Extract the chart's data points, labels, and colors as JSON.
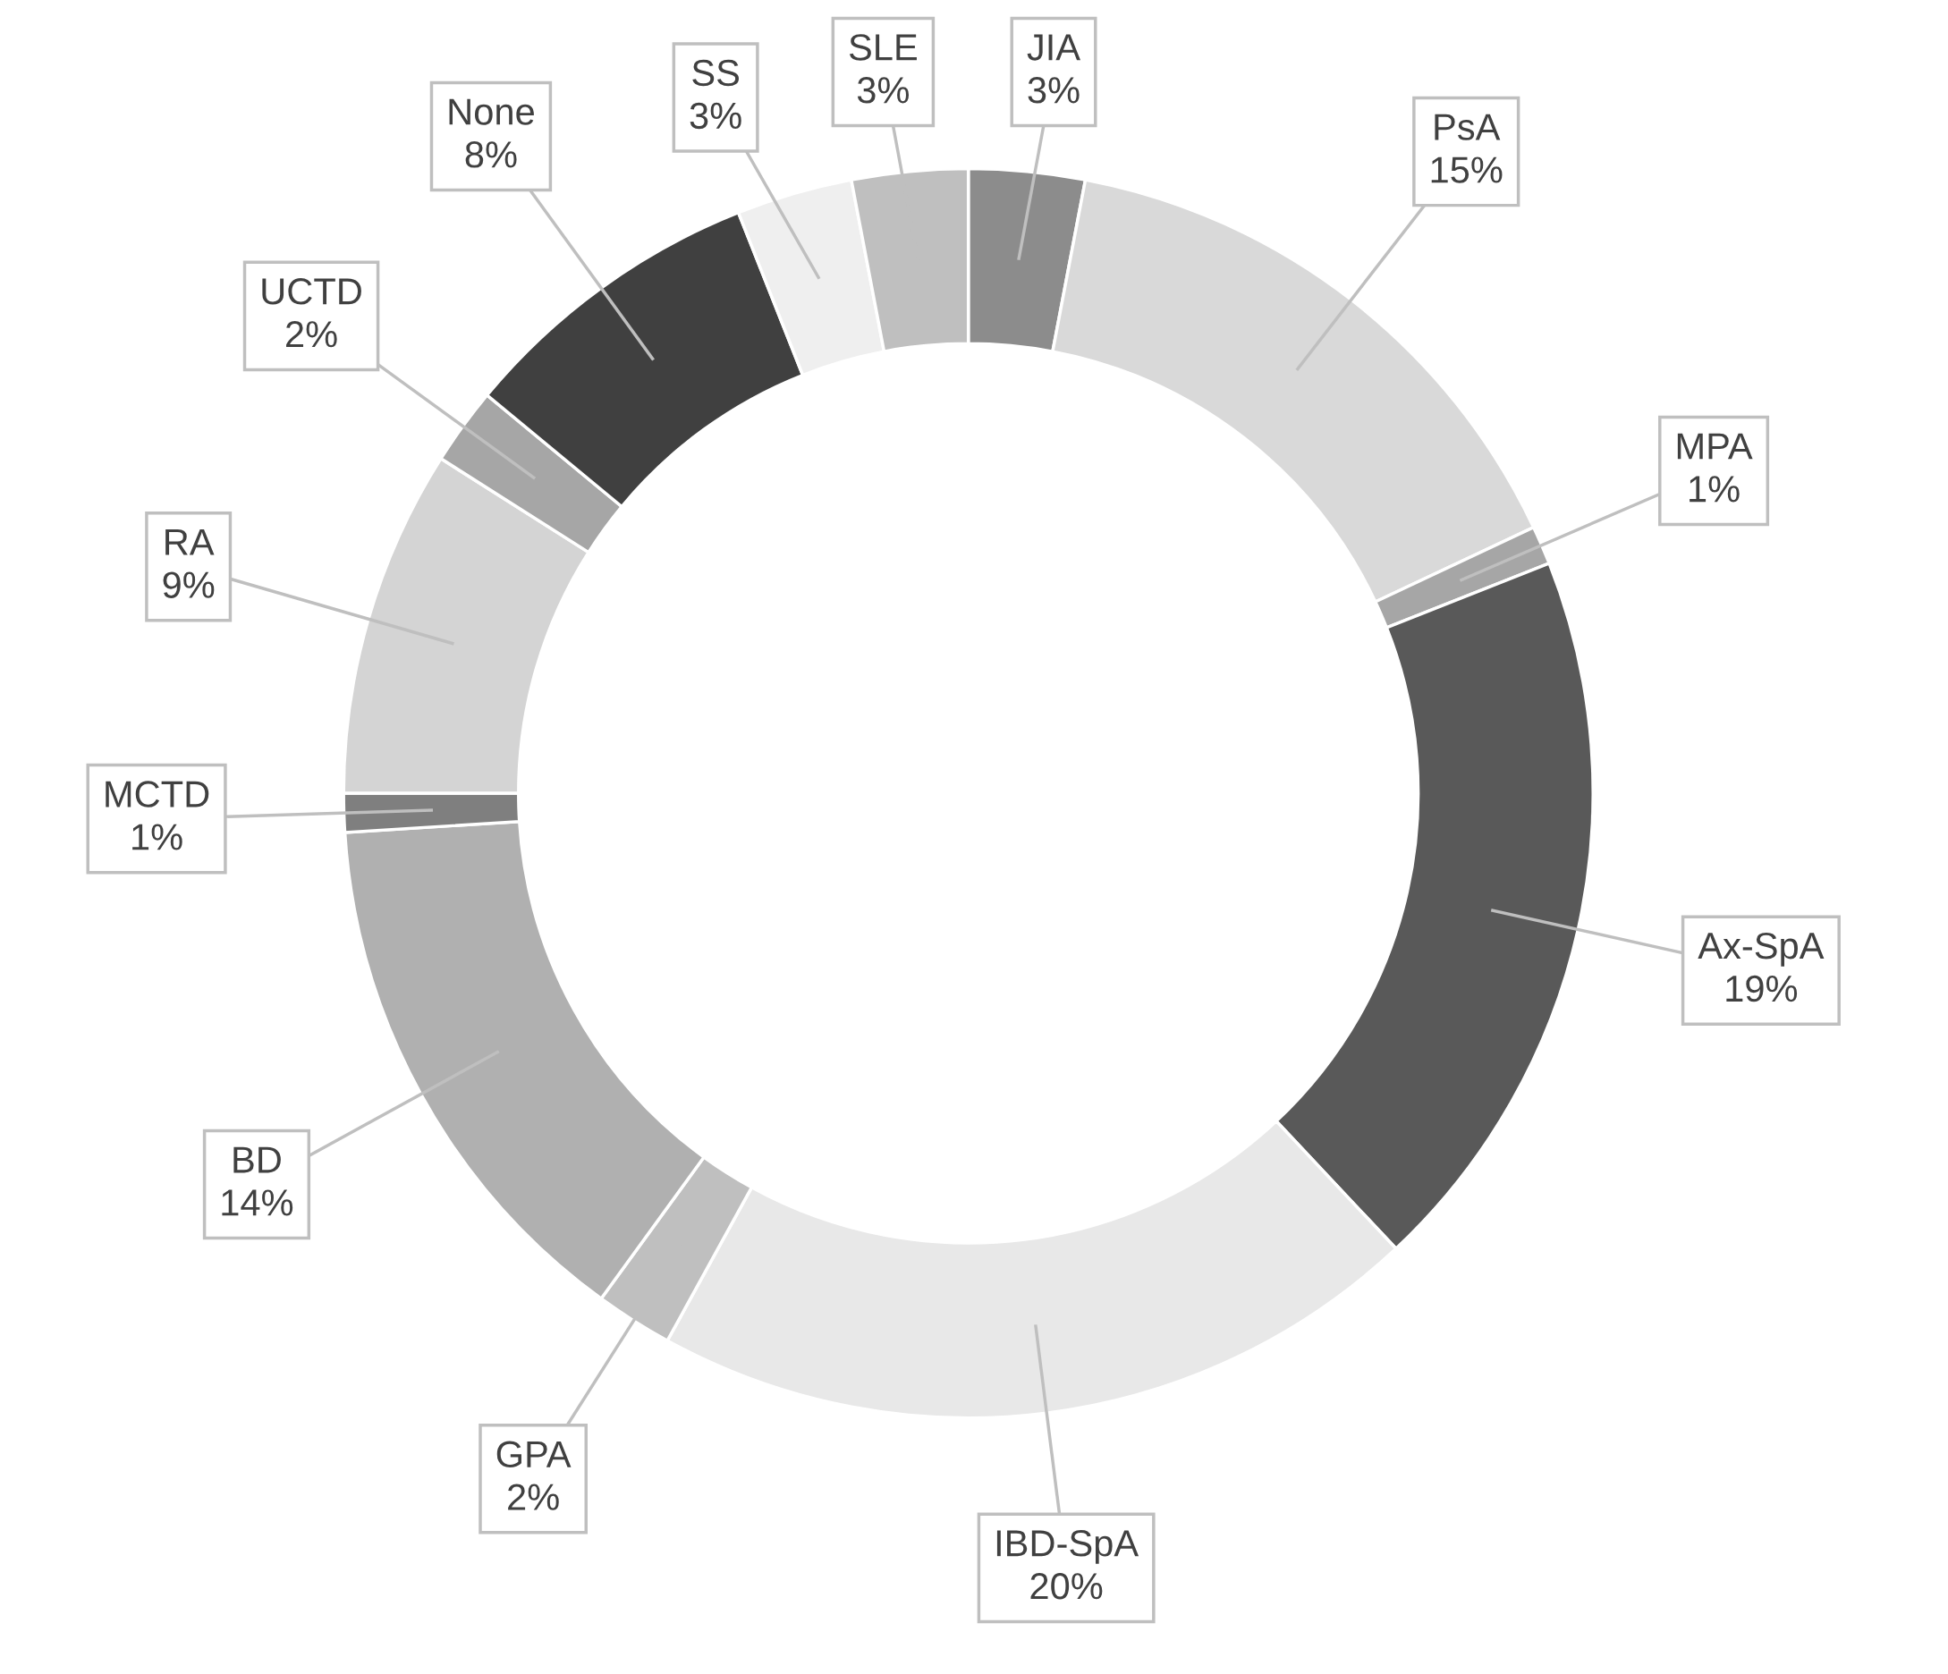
{
  "chart_data": {
    "type": "donut",
    "categories": [
      "JIA",
      "PsA",
      "MPA",
      "Ax-SpA",
      "IBD-SpA",
      "GPA",
      "BD",
      "MCTD",
      "RA",
      "UCTD",
      "None",
      "SS",
      "SLE"
    ],
    "values": [
      3,
      15,
      1,
      19,
      20,
      2,
      14,
      1,
      9,
      2,
      8,
      3,
      3
    ],
    "colors": [
      "#8c8c8c",
      "#d9d9d9",
      "#a6a6a6",
      "#595959",
      "#e8e8e8",
      "#bfbfbf",
      "#b0b0b0",
      "#7f7f7f",
      "#d4d4d4",
      "#a6a6a6",
      "#404040",
      "#efefef",
      "#bfbfbf"
    ],
    "value_labels": [
      "3%",
      "15%",
      "1%",
      "19%",
      "20%",
      "2%",
      "14%",
      "1%",
      "9%",
      "2%",
      "8%",
      "3%",
      "3%"
    ],
    "legend": false
  }
}
